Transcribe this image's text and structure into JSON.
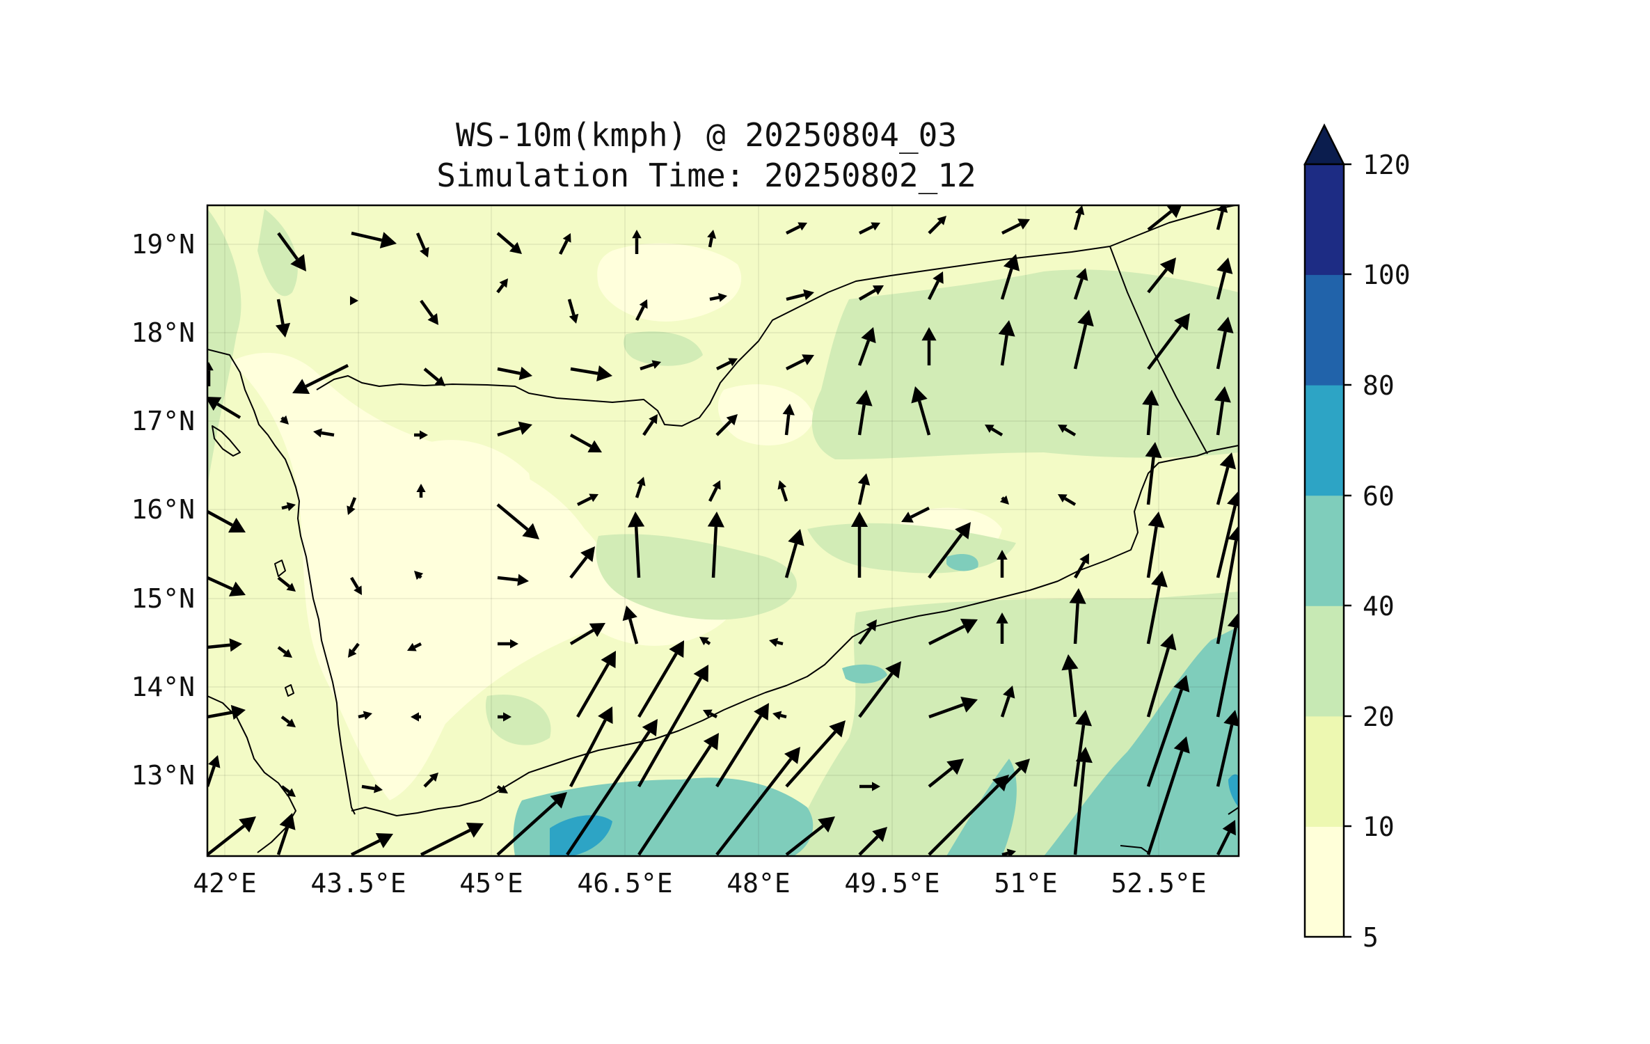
{
  "map": {
    "title_line1": "WS-10m(kmph) @ 20250804_03",
    "title_line2": "Simulation Time: 20250802_12",
    "x_ticks": [
      "42°E",
      "43.5°E",
      "45°E",
      "46.5°E",
      "48°E",
      "49.5°E",
      "51°E",
      "52.5°E"
    ],
    "y_ticks": [
      "19°N",
      "18°N",
      "17°N",
      "16°N",
      "15°N",
      "14°N",
      "13°N"
    ],
    "lon_range": [
      41.9,
      53.5
    ],
    "lat_range": [
      12.1,
      19.45
    ]
  },
  "colorbar": {
    "ticks": [
      "5",
      "10",
      "20",
      "40",
      "60",
      "80",
      "100",
      "120"
    ],
    "colors": [
      "#ffffd9",
      "#edf8b1",
      "#c7e9b4",
      "#7fcdbb",
      "#2da4c5",
      "#2163aa",
      "#1d2c84"
    ],
    "extend_color": "#0b1d4e"
  },
  "colors": {
    "land_base": "#f3fbc6",
    "contour_low": "#ffffdc",
    "contour_mid": "#d2ecb6",
    "contour_high": "#7fcdbb",
    "contour_peak": "#2da4c5",
    "coastline": "#000000",
    "arrow": "#000000"
  }
}
